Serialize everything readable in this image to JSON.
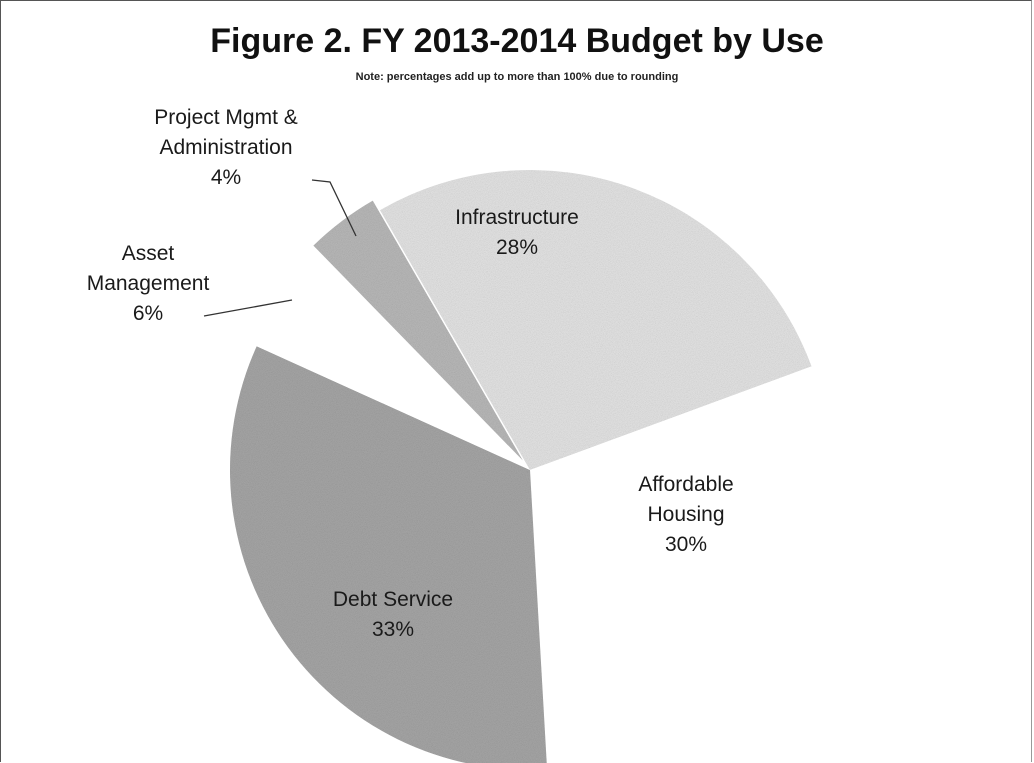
{
  "chart_data": {
    "type": "pie",
    "title": "Figure 2. FY 2013-2014 Budget by Use",
    "subtitle": "Note: percentages add up to more than 100% due to rounding",
    "slices": [
      {
        "label_lines": [
          "Infrastructure",
          "28%"
        ],
        "value": 28,
        "color": "#e8e8e8"
      },
      {
        "label_lines": [
          "Affordable",
          "Housing",
          "30%"
        ],
        "value": 30,
        "color": "#ffffff"
      },
      {
        "label_lines": [
          "Debt Service",
          "33%"
        ],
        "value": 33,
        "color": "#a9a9a9"
      },
      {
        "label_lines": [
          "Asset",
          "Management",
          "6%"
        ],
        "value": 6,
        "color": "#ffffff"
      },
      {
        "label_lines": [
          "Project Mgmt &",
          "Administration",
          "4%"
        ],
        "value": 4,
        "color": "#bcbcbc"
      }
    ],
    "legend": "none",
    "grid": false
  }
}
